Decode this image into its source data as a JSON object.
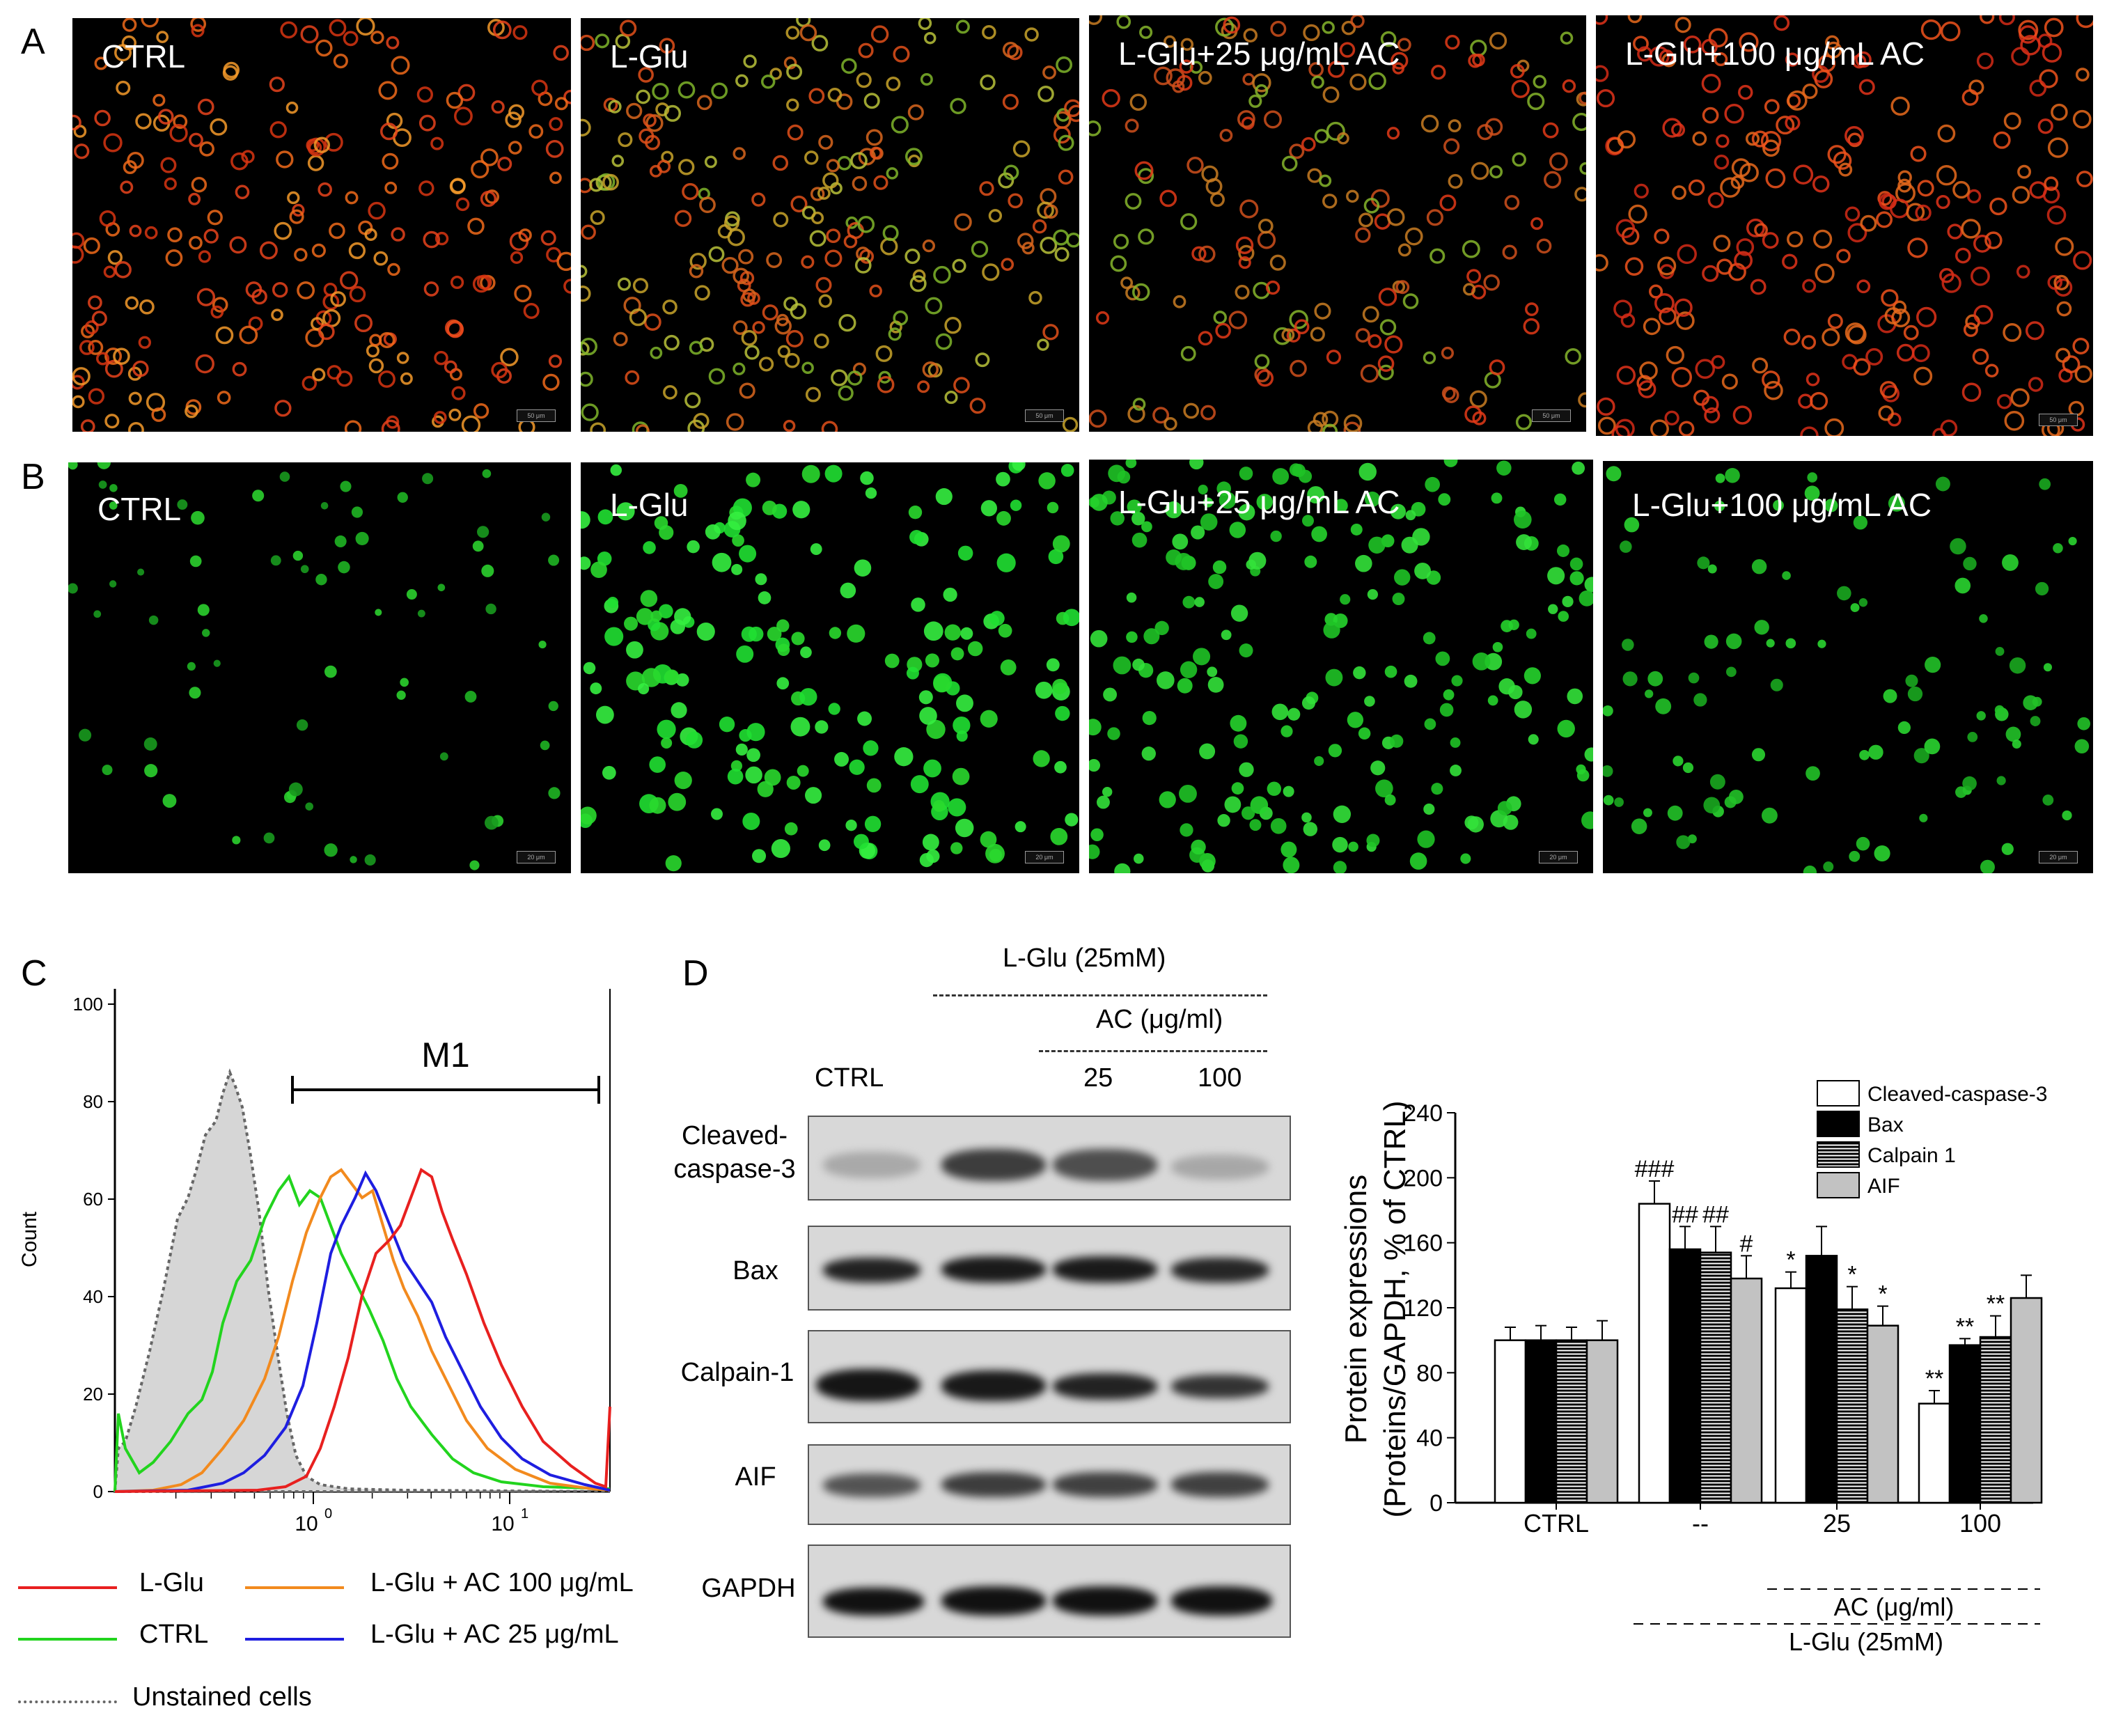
{
  "panel_labels": {
    "a": "A",
    "b": "B",
    "c": "C",
    "d": "D"
  },
  "panel_a": {
    "images": [
      {
        "label": "CTRL",
        "scalebar": "50 μm"
      },
      {
        "label": "L-Glu",
        "scalebar": "50 μm"
      },
      {
        "label": "L-Glu+25 μg/mL AC",
        "scalebar": "50 μm"
      },
      {
        "label": "L-Glu+100 μg/mL AC",
        "scalebar": "50 μm"
      }
    ]
  },
  "panel_b": {
    "images": [
      {
        "label": "CTRL",
        "scalebar": "20 μm"
      },
      {
        "label": "L-Glu",
        "scalebar": "20 μm"
      },
      {
        "label": "L-Glu+25 μg/mL AC",
        "scalebar": "20 μm"
      },
      {
        "label": "L-Glu+100 μg/mL AC",
        "scalebar": "20 μm"
      }
    ]
  },
  "panel_c": {
    "ylabel": "Count",
    "y_ticks": [
      "0",
      "20",
      "40",
      "60",
      "80",
      "100"
    ],
    "x_ticks": [
      {
        "base": "10",
        "exp": "0"
      },
      {
        "base": "10",
        "exp": "1"
      }
    ],
    "gate_label": "M1",
    "legend": [
      {
        "label": "L-Glu",
        "color": "#e8201f",
        "style": "solid"
      },
      {
        "label": "L-Glu + AC 100 μg/mL",
        "color": "#f28a1e",
        "style": "solid"
      },
      {
        "label": "CTRL",
        "color": "#22d41e",
        "style": "solid"
      },
      {
        "label": "L-Glu + AC 25 μg/mL",
        "color": "#1e1ee0",
        "style": "solid"
      },
      {
        "label": "Unstained cells",
        "color": "#666666",
        "style": "dotted"
      }
    ]
  },
  "panel_d_blot": {
    "header_lglu": "L-Glu (25mM)",
    "header_ac": "AC (μg/ml)",
    "lanes": [
      "CTRL",
      "",
      "25",
      "100"
    ],
    "rows": [
      "Cleaved-\ncaspase-3",
      "Bax",
      "Calpain-1",
      "AIF",
      "GAPDH"
    ]
  },
  "chart_data": {
    "type": "bar",
    "ylabel_line1": "Protein expressions",
    "ylabel_line2": "(Proteins/GAPDH, % of CTRL)",
    "ylim": [
      0,
      240
    ],
    "y_ticks": [
      "0",
      "40",
      "80",
      "120",
      "160",
      "200",
      "240"
    ],
    "categories": [
      "CTRL",
      "--",
      "25",
      "100"
    ],
    "group_label_ac": "AC (μg/ml)",
    "group_label_lglu": "L-Glu (25mM)",
    "legend_position": "top-right",
    "series": [
      {
        "name": "Cleaved-caspase-3",
        "fill": "white",
        "values": [
          100,
          184,
          132,
          61
        ],
        "errors": [
          8,
          14,
          10,
          8
        ],
        "marks": [
          "",
          "###",
          "*",
          "**"
        ]
      },
      {
        "name": "Bax",
        "fill": "black",
        "values": [
          100,
          156,
          152,
          97
        ],
        "errors": [
          9,
          14,
          18,
          4
        ],
        "marks": [
          "",
          "##",
          "",
          "**"
        ]
      },
      {
        "name": "Calpain 1",
        "fill": "hstripe",
        "values": [
          100,
          154,
          119,
          102
        ],
        "errors": [
          8,
          16,
          14,
          13
        ],
        "marks": [
          "",
          "##",
          "*",
          "**"
        ]
      },
      {
        "name": "AIF",
        "fill": "gray",
        "values": [
          100,
          138,
          109,
          126
        ],
        "errors": [
          12,
          14,
          12,
          14
        ],
        "marks": [
          "",
          "#",
          "*",
          ""
        ]
      }
    ]
  }
}
